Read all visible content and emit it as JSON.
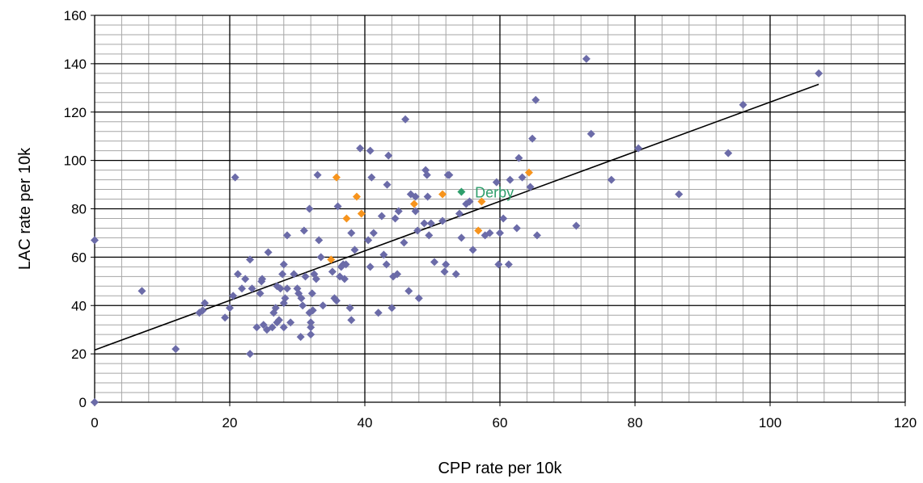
{
  "chart_data": {
    "type": "scatter",
    "title": "",
    "xlabel": "CPP rate per 10k",
    "ylabel": "LAC rate per 10k",
    "xlim": [
      0,
      120
    ],
    "ylim": [
      0,
      160
    ],
    "x_ticks": [
      0,
      20,
      40,
      60,
      80,
      100,
      120
    ],
    "y_ticks": [
      0,
      20,
      40,
      60,
      80,
      100,
      120,
      140,
      160
    ],
    "grid": "major and minor",
    "legend": "none",
    "colors": {
      "main": "#6b6ba8",
      "comparators": "#f7941d",
      "highlight": "#2e9e6b",
      "trendline": "#000000",
      "major_grid": "#000000",
      "minor_grid": "#a6a6a6"
    },
    "series": [
      {
        "points": [
          [
            0,
            0
          ],
          [
            0,
            67
          ],
          [
            7,
            46
          ],
          [
            12,
            22
          ],
          [
            15.5,
            37
          ],
          [
            16,
            38
          ],
          [
            16.3,
            41
          ],
          [
            19.3,
            35
          ],
          [
            20,
            39
          ],
          [
            20.5,
            44
          ],
          [
            20.8,
            93
          ],
          [
            21.2,
            53
          ],
          [
            21.8,
            47
          ],
          [
            22.3,
            51
          ],
          [
            23,
            20
          ],
          [
            23,
            59
          ],
          [
            23.3,
            47
          ],
          [
            24,
            31
          ],
          [
            24.5,
            45
          ],
          [
            24.7,
            50
          ],
          [
            24.8,
            51
          ],
          [
            25,
            32
          ],
          [
            25.5,
            30
          ],
          [
            25.7,
            62
          ],
          [
            26.3,
            31
          ],
          [
            26.5,
            37
          ],
          [
            26.8,
            39
          ],
          [
            27,
            33
          ],
          [
            27.3,
            34
          ],
          [
            27,
            48
          ],
          [
            27.5,
            47
          ],
          [
            27.8,
            53
          ],
          [
            28,
            57
          ],
          [
            28,
            31
          ],
          [
            28,
            41
          ],
          [
            28.2,
            43
          ],
          [
            28.5,
            47
          ],
          [
            28.5,
            69
          ],
          [
            29,
            33
          ],
          [
            29.5,
            53
          ],
          [
            30,
            47
          ],
          [
            30.2,
            45
          ],
          [
            30.5,
            27
          ],
          [
            30.6,
            43
          ],
          [
            30.8,
            40
          ],
          [
            31,
            71
          ],
          [
            31.2,
            52
          ],
          [
            31.8,
            37
          ],
          [
            31.8,
            80
          ],
          [
            32,
            28
          ],
          [
            32,
            31
          ],
          [
            32,
            33
          ],
          [
            32.2,
            45
          ],
          [
            32.3,
            38
          ],
          [
            32.5,
            53
          ],
          [
            32.8,
            51
          ],
          [
            33,
            94
          ],
          [
            33.2,
            67
          ],
          [
            33.5,
            60
          ],
          [
            33.8,
            40
          ],
          [
            35.2,
            54
          ],
          [
            35.5,
            43
          ],
          [
            35.8,
            42
          ],
          [
            36,
            81
          ],
          [
            36.3,
            52
          ],
          [
            36.5,
            56
          ],
          [
            36.8,
            57
          ],
          [
            37,
            51
          ],
          [
            37.2,
            57
          ],
          [
            37.8,
            39
          ],
          [
            38,
            70
          ],
          [
            38,
            34
          ],
          [
            38.5,
            63
          ],
          [
            39.3,
            105
          ],
          [
            40.5,
            67
          ],
          [
            40.8,
            56
          ],
          [
            40.8,
            104
          ],
          [
            41,
            93
          ],
          [
            41.3,
            70
          ],
          [
            42,
            37
          ],
          [
            42.5,
            77
          ],
          [
            42.8,
            61
          ],
          [
            43.2,
            57
          ],
          [
            43.3,
            90
          ],
          [
            43.5,
            102
          ],
          [
            44,
            39
          ],
          [
            44.2,
            52
          ],
          [
            44.5,
            76
          ],
          [
            44.8,
            53
          ],
          [
            45,
            79
          ],
          [
            45.8,
            66
          ],
          [
            46,
            117
          ],
          [
            46.5,
            46
          ],
          [
            46.8,
            86
          ],
          [
            47.5,
            85
          ],
          [
            47.5,
            79
          ],
          [
            47.8,
            71
          ],
          [
            48,
            43
          ],
          [
            48.8,
            74
          ],
          [
            49,
            96
          ],
          [
            49.2,
            94
          ],
          [
            49.3,
            85
          ],
          [
            49.5,
            69
          ],
          [
            49.8,
            74
          ],
          [
            50.3,
            58
          ],
          [
            51.5,
            75
          ],
          [
            51.8,
            54
          ],
          [
            52,
            57
          ],
          [
            52.3,
            94
          ],
          [
            52.5,
            94
          ],
          [
            53.5,
            53
          ],
          [
            54,
            78
          ],
          [
            54.3,
            68
          ],
          [
            55,
            82
          ],
          [
            55.5,
            83
          ],
          [
            56,
            63
          ],
          [
            57.8,
            69
          ],
          [
            58.5,
            70
          ],
          [
            59.5,
            91
          ],
          [
            59.8,
            57
          ],
          [
            60,
            70
          ],
          [
            60.5,
            76
          ],
          [
            61.3,
            57
          ],
          [
            61.5,
            92
          ],
          [
            62.5,
            72
          ],
          [
            62.8,
            101
          ],
          [
            63.3,
            93
          ],
          [
            64.5,
            89
          ],
          [
            64.8,
            109
          ],
          [
            65.3,
            125
          ],
          [
            65.5,
            69
          ],
          [
            71.3,
            73
          ],
          [
            72.8,
            142
          ],
          [
            73.5,
            111
          ],
          [
            76.5,
            92
          ],
          [
            80.5,
            105
          ],
          [
            86.5,
            86
          ],
          [
            93.8,
            103
          ],
          [
            96,
            123
          ],
          [
            107.2,
            136
          ]
        ]
      },
      {
        "points": [
          [
            35,
            59
          ],
          [
            35.8,
            93
          ],
          [
            37.3,
            76
          ],
          [
            38.8,
            85
          ],
          [
            39.5,
            78
          ],
          [
            47.3,
            82
          ],
          [
            51.5,
            86
          ],
          [
            56.8,
            71
          ],
          [
            57.3,
            83
          ],
          [
            64.3,
            95
          ]
        ]
      },
      {
        "points": [
          [
            54.3,
            87
          ]
        ]
      }
    ],
    "trendline": {
      "x": [
        0,
        107.2
      ],
      "y": [
        21.6,
        131.5
      ]
    },
    "annotations": [
      {
        "text": "Derby",
        "x": 56.3,
        "y": 87
      }
    ]
  }
}
